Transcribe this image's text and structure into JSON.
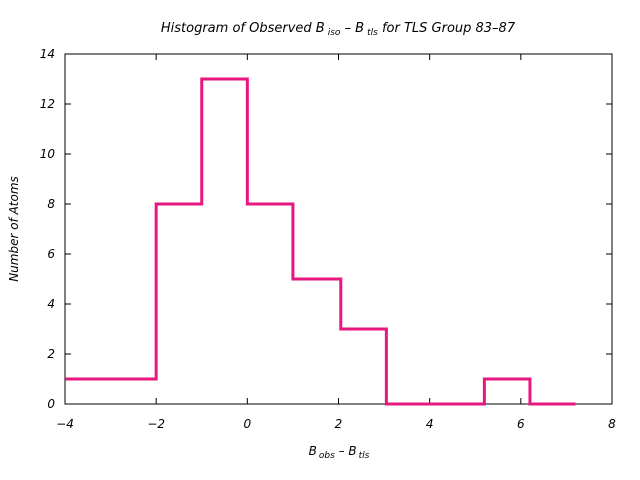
{
  "chart_data": {
    "type": "bar",
    "title": {
      "prefix": "Histogram of Observed B",
      "sub1": "iso",
      "mid": " – B",
      "sub2": "tls",
      "suffix": " for TLS Group 83–87"
    },
    "xlabel": {
      "b1": "B",
      "s1": "obs",
      "mid": " – B",
      "s2": "tls"
    },
    "ylabel": "Number of Atoms",
    "xlim": [
      -4,
      8
    ],
    "ylim": [
      0,
      14
    ],
    "xticks": [
      -4,
      -2,
      0,
      2,
      4,
      6,
      8
    ],
    "xtick_labels": [
      "−4",
      "−2",
      "0",
      "2",
      "4",
      "6",
      "8"
    ],
    "yticks": [
      0,
      2,
      4,
      6,
      8,
      10,
      12,
      14
    ],
    "ytick_labels": [
      "0",
      "2",
      "4",
      "6",
      "8",
      "10",
      "12",
      "14"
    ],
    "bins": [
      {
        "x0": -4.0,
        "x1": -2.0,
        "count": 1
      },
      {
        "x0": -2.0,
        "x1": -1.0,
        "count": 8
      },
      {
        "x0": -1.0,
        "x1": 0.0,
        "count": 13
      },
      {
        "x0": 0.0,
        "x1": 1.0,
        "count": 8
      },
      {
        "x0": 1.0,
        "x1": 2.05,
        "count": 5
      },
      {
        "x0": 2.05,
        "x1": 3.05,
        "count": 3
      },
      {
        "x0": 3.05,
        "x1": 5.2,
        "count": 0
      },
      {
        "x0": 5.2,
        "x1": 6.2,
        "count": 1
      },
      {
        "x0": 6.2,
        "x1": 7.2,
        "count": 0
      }
    ],
    "color": "#e8177f",
    "grid": false
  }
}
